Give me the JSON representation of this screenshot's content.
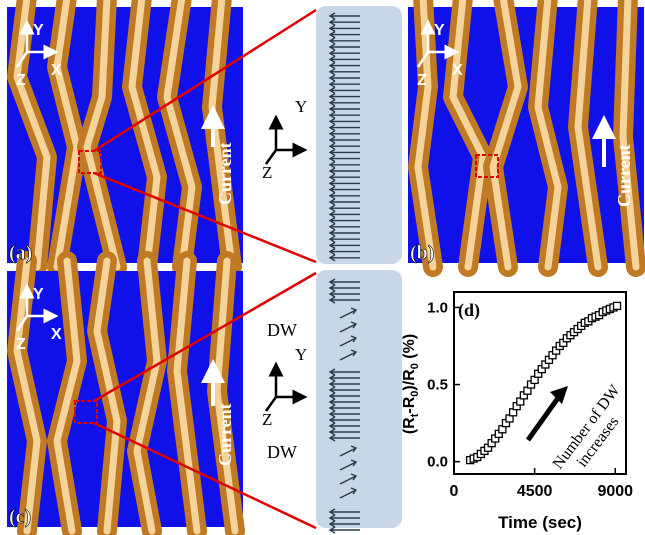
{
  "panels": {
    "a": {
      "label": "(a)",
      "current": "Current",
      "axes": {
        "y": "Y",
        "x": "X",
        "z": "Z"
      }
    },
    "b": {
      "label": "(b)",
      "current": "Current",
      "axes": {
        "y": "Y",
        "x": "X",
        "z": "Z"
      }
    },
    "c": {
      "label": "(c)",
      "current": "Current",
      "axes": {
        "y": "Y",
        "x": "X",
        "z": "Z"
      }
    }
  },
  "schematic_top": {
    "axes": {
      "y": "Y",
      "z": "Z"
    }
  },
  "schematic_bottom": {
    "axes": {
      "y": "Y",
      "z": "Z"
    },
    "dw_top": "DW",
    "dw_bottom": "DW"
  },
  "colors": {
    "domain": "#1010e8",
    "stripe": "#d88a2a",
    "stripe_light": "#f6d8a0",
    "schematic_bg": "#c8d6e8",
    "zoom_line": "#e00000",
    "arrow": "#2a3a4a"
  },
  "chart_data": {
    "type": "scatter",
    "panel_label": "(d)",
    "xlabel": "Time (sec)",
    "ylabel": "(R",
    "ylabel_parts": [
      "(R",
      "t",
      "-R",
      "0",
      ")/R",
      "0",
      " (%)"
    ],
    "xticks": [
      "0",
      "4500",
      "9000"
    ],
    "yticks": [
      "0.0",
      "0.5",
      "1.0"
    ],
    "xlim": [
      0,
      9600
    ],
    "ylim": [
      -0.08,
      1.1
    ],
    "annotation": [
      "Number of DW",
      "increases"
    ],
    "marker": "open-square",
    "x": [
      900,
      1100,
      1300,
      1500,
      1700,
      1900,
      2100,
      2300,
      2500,
      2700,
      2900,
      3100,
      3300,
      3500,
      3700,
      3900,
      4100,
      4300,
      4500,
      4700,
      4900,
      5100,
      5300,
      5500,
      5700,
      5900,
      6100,
      6300,
      6500,
      6700,
      6900,
      7100,
      7300,
      7500,
      7700,
      7900,
      8100,
      8300,
      8500,
      8700,
      8900,
      9100
    ],
    "y": [
      0.01,
      0.02,
      0.03,
      0.05,
      0.07,
      0.09,
      0.12,
      0.15,
      0.18,
      0.21,
      0.25,
      0.28,
      0.32,
      0.36,
      0.39,
      0.43,
      0.46,
      0.5,
      0.53,
      0.57,
      0.6,
      0.63,
      0.66,
      0.69,
      0.72,
      0.75,
      0.77,
      0.8,
      0.82,
      0.84,
      0.86,
      0.88,
      0.9,
      0.91,
      0.93,
      0.94,
      0.95,
      0.97,
      0.98,
      0.99,
      1.0,
      1.01
    ]
  }
}
